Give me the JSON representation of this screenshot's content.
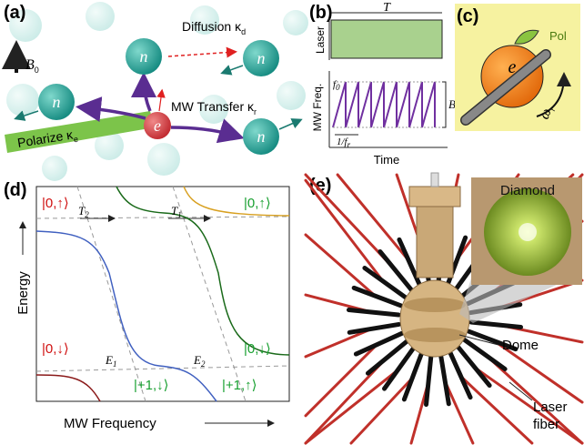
{
  "panel_a": {
    "label": "(a)",
    "field": {
      "symbol": "B",
      "sub": "0"
    },
    "diffusion": {
      "text": "Diffusion κ",
      "sub": "d"
    },
    "transfer": {
      "text": "MW Transfer κ",
      "sub": "r"
    },
    "polarize": {
      "text": "Polarize κ",
      "sub": "e"
    },
    "electron": "e",
    "nuclei": [
      "n",
      "n",
      "n",
      "n"
    ]
  },
  "panel_b": {
    "label": "(b)",
    "period": "T",
    "laser_axis": "Laser",
    "mw_axis": "MW Freq.",
    "start_freq": {
      "symbol": "f",
      "sub": "0"
    },
    "bandwidth": "B",
    "sweep_period": {
      "text": "1/f",
      "sub": "r"
    },
    "time_axis": "Time"
  },
  "panel_c": {
    "label": "(c)",
    "electron": "e",
    "polarization": "Pol",
    "rotation": {
      "symbol": "ω",
      "sub": "r"
    }
  },
  "panel_d": {
    "label": "(d)",
    "states": [
      "|0,↑⟩",
      "|0,↑⟩",
      "|0,↓⟩",
      "|0,↓⟩",
      "|+1,↓⟩",
      "|+1,↑⟩"
    ],
    "transitions": [
      {
        "symbol": "T",
        "sub": "2"
      },
      {
        "symbol": "T",
        "sub": "1"
      }
    ],
    "crossings": [
      {
        "symbol": "E",
        "sub": "1"
      },
      {
        "symbol": "E",
        "sub": "2"
      }
    ],
    "y_axis": "Energy",
    "x_axis": "MW Frequency"
  },
  "panel_e": {
    "label": "(e)",
    "inset": "Diamond",
    "dome": "Dome",
    "fiber": [
      "Laser",
      "fiber"
    ]
  }
}
